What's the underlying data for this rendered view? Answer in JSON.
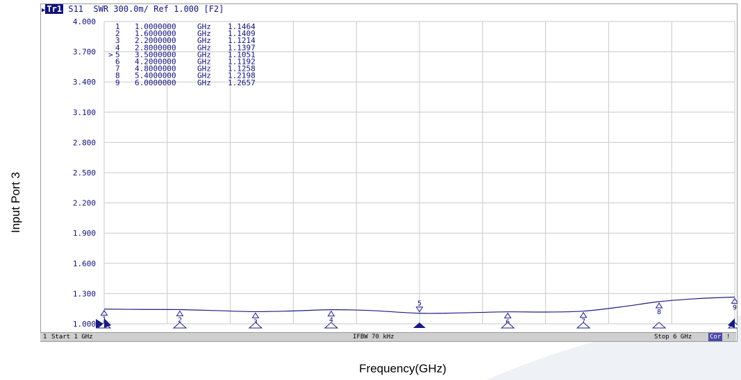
{
  "header": {
    "trace_tag": "Tr1",
    "measurement": "S11",
    "format": "SWR",
    "scale": "300.0m/",
    "ref": "Ref 1.000",
    "channel": "[F2]"
  },
  "status_bar": {
    "channel_num": "1",
    "start": "Start 1 GHz",
    "ifbw": "IFBW 70 kHz",
    "stop": "Stop 6 GHz",
    "cor": "Cor",
    "excl": "!"
  },
  "y_axis_title": "Input Port 3",
  "x_axis_title": "Frequency(GHz)",
  "marker_table": [
    {
      "num": "1",
      "active": false,
      "freq": "1.0000000",
      "unit": "GHz",
      "value": "1.1464"
    },
    {
      "num": "2",
      "active": false,
      "freq": "1.6000000",
      "unit": "GHz",
      "value": "1.1409"
    },
    {
      "num": "3",
      "active": false,
      "freq": "2.2000000",
      "unit": "GHz",
      "value": "1.1214"
    },
    {
      "num": "4",
      "active": false,
      "freq": "2.8000000",
      "unit": "GHz",
      "value": "1.1397"
    },
    {
      "num": "5",
      "active": true,
      "freq": "3.5000000",
      "unit": "GHz",
      "value": "1.1051"
    },
    {
      "num": "6",
      "active": false,
      "freq": "4.2000000",
      "unit": "GHz",
      "value": "1.1192"
    },
    {
      "num": "7",
      "active": false,
      "freq": "4.8000000",
      "unit": "GHz",
      "value": "1.1258"
    },
    {
      "num": "8",
      "active": false,
      "freq": "5.4000000",
      "unit": "GHz",
      "value": "1.2198"
    },
    {
      "num": "9",
      "active": false,
      "freq": "6.0000000",
      "unit": "GHz",
      "value": "1.2657"
    }
  ],
  "colors": {
    "trace": "#1a1a80",
    "grid": "#c8c8c8",
    "text": "#10107a",
    "status_bg": "#cfcfcf",
    "swoosh": "#eef1f5"
  },
  "chart_data": {
    "type": "line",
    "title": "",
    "xlabel": "Frequency(GHz)",
    "ylabel": "Input Port 3",
    "xlim": [
      1,
      6
    ],
    "ylim": [
      1.0,
      4.0
    ],
    "y_ticks": [
      "4.000",
      "3.700",
      "3.400",
      "3.100",
      "2.800",
      "2.500",
      "2.200",
      "1.900",
      "1.600",
      "1.300",
      "1.000"
    ],
    "y_tick_values": [
      4.0,
      3.7,
      3.4,
      3.1,
      2.8,
      2.5,
      2.2,
      1.9,
      1.6,
      1.3,
      1.0
    ],
    "grid": true,
    "series": [
      {
        "x": [
          1.0,
          1.3,
          1.6,
          1.9,
          2.2,
          2.5,
          2.8,
          3.1,
          3.5,
          3.8,
          4.2,
          4.5,
          4.8,
          5.1,
          5.4,
          5.7,
          6.0
        ],
        "y": [
          1.146,
          1.143,
          1.141,
          1.131,
          1.121,
          1.128,
          1.14,
          1.133,
          1.105,
          1.108,
          1.119,
          1.117,
          1.126,
          1.168,
          1.22,
          1.25,
          1.266
        ]
      }
    ],
    "markers": [
      {
        "num": "1",
        "x": 1.0,
        "y": 1.1464
      },
      {
        "num": "2",
        "x": 1.6,
        "y": 1.1409
      },
      {
        "num": "3",
        "x": 2.2,
        "y": 1.1214
      },
      {
        "num": "4",
        "x": 2.8,
        "y": 1.1397
      },
      {
        "num": "5",
        "x": 3.5,
        "y": 1.1051
      },
      {
        "num": "6",
        "x": 4.2,
        "y": 1.1192
      },
      {
        "num": "7",
        "x": 4.8,
        "y": 1.1258
      },
      {
        "num": "8",
        "x": 5.4,
        "y": 1.2198
      },
      {
        "num": "9",
        "x": 6.0,
        "y": 1.2657
      }
    ]
  }
}
